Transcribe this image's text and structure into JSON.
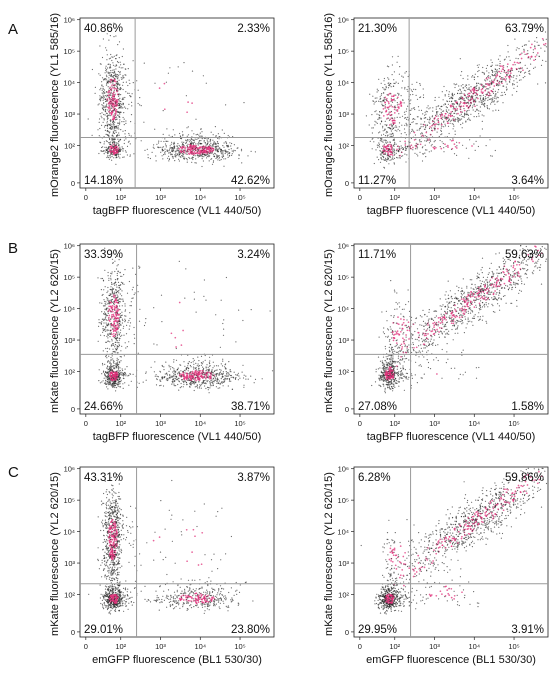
{
  "panel_letters": [
    "A",
    "B",
    "C"
  ],
  "chart_data": [
    {
      "type": "scatter",
      "panel": "A",
      "column": "left",
      "xlabel": "tagBFP fluorescence (VL1 440/50)",
      "ylabel": "mOrange2 fluorescence (YL1 585/16)",
      "xticks": [
        "0",
        "10²",
        "10³",
        "10⁴",
        "10⁵"
      ],
      "yticks": [
        "0",
        "10²",
        "10³",
        "10⁴",
        "10⁵",
        "10⁶"
      ],
      "gate": {
        "x": 230,
        "y": 180
      },
      "quadrants": {
        "top_left": "40.86%",
        "top_right": "2.33%",
        "bottom_left": "14.18%",
        "bottom_right": "42.62%"
      },
      "populations": [
        {
          "fraction": 0.4086,
          "center": [
            35,
            3000
          ],
          "spread": [
            0.35,
            0.75
          ],
          "orientation": "vertical"
        },
        {
          "fraction": 0.4262,
          "center": [
            8000,
            60
          ],
          "spread": [
            0.5,
            0.3
          ],
          "orientation": "horizontal"
        },
        {
          "fraction": 0.1418,
          "center": [
            40,
            60
          ],
          "spread": [
            0.3,
            0.3
          ],
          "orientation": "none"
        },
        {
          "fraction": 0.0233,
          "center": [
            3000,
            3000
          ],
          "spread": [
            0.9,
            0.9
          ],
          "orientation": "none"
        }
      ]
    },
    {
      "type": "scatter",
      "panel": "A",
      "column": "right",
      "xlabel": "tagBFP fluorescence (VL1 440/50)",
      "ylabel": "mOrange2 fluorescence (YL1 585/16)",
      "xticks": [
        "0",
        "10²",
        "10³",
        "10⁴",
        "10⁵"
      ],
      "yticks": [
        "0",
        "10²",
        "10³",
        "10⁴",
        "10⁵",
        "10⁶"
      ],
      "gate": {
        "x": 230,
        "y": 180
      },
      "quadrants": {
        "top_left": "21.30%",
        "top_right": "63.79%",
        "bottom_left": "11.27%",
        "bottom_right": "3.64%"
      },
      "populations": [
        {
          "fraction": 0.6379,
          "center": [
            8000,
            3000
          ],
          "spread": [
            0.55,
            0.55
          ],
          "orientation": "diagonal"
        },
        {
          "fraction": 0.213,
          "center": [
            60,
            1500
          ],
          "spread": [
            0.5,
            0.6
          ],
          "orientation": "none"
        },
        {
          "fraction": 0.1127,
          "center": [
            40,
            60
          ],
          "spread": [
            0.35,
            0.35
          ],
          "orientation": "none"
        },
        {
          "fraction": 0.0364,
          "center": [
            3000,
            80
          ],
          "spread": [
            0.6,
            0.3
          ],
          "orientation": "none"
        }
      ]
    },
    {
      "type": "scatter",
      "panel": "B",
      "column": "left",
      "xlabel": "tagBFP fluorescence (VL1 440/50)",
      "ylabel": "mKate fluorescence (YL2 620/15)",
      "xticks": [
        "0",
        "10²",
        "10³",
        "10⁴",
        "10⁵"
      ],
      "yticks": [
        "0",
        "10²",
        "10³",
        "10⁴",
        "10⁵",
        "10⁶"
      ],
      "gate": {
        "x": 250,
        "y": 350
      },
      "quadrants": {
        "top_left": "33.39%",
        "top_right": "3.24%",
        "bottom_left": "24.66%",
        "bottom_right": "38.71%"
      },
      "populations": [
        {
          "fraction": 0.3339,
          "center": [
            40,
            6000
          ],
          "spread": [
            0.35,
            0.75
          ],
          "orientation": "vertical"
        },
        {
          "fraction": 0.3871,
          "center": [
            8000,
            60
          ],
          "spread": [
            0.5,
            0.3
          ],
          "orientation": "horizontal"
        },
        {
          "fraction": 0.2466,
          "center": [
            40,
            60
          ],
          "spread": [
            0.3,
            0.3
          ],
          "orientation": "none"
        },
        {
          "fraction": 0.0324,
          "center": [
            3000,
            3000
          ],
          "spread": [
            0.9,
            0.9
          ],
          "orientation": "none"
        }
      ]
    },
    {
      "type": "scatter",
      "panel": "B",
      "column": "right",
      "xlabel": "tagBFP fluorescence (VL1 440/50)",
      "ylabel": "mKate fluorescence (YL2 620/15)",
      "xticks": [
        "0",
        "10²",
        "10³",
        "10⁴",
        "10⁵"
      ],
      "yticks": [
        "0",
        "10²",
        "10³",
        "10⁴",
        "10⁵",
        "10⁶"
      ],
      "gate": {
        "x": 250,
        "y": 350
      },
      "quadrants": {
        "top_left": "11.71%",
        "top_right": "59.63%",
        "bottom_left": "27.08%",
        "bottom_right": "1.58%"
      },
      "populations": [
        {
          "fraction": 0.5963,
          "center": [
            10000,
            20000
          ],
          "spread": [
            0.55,
            0.55
          ],
          "orientation": "diagonal"
        },
        {
          "fraction": 0.2708,
          "center": [
            50,
            70
          ],
          "spread": [
            0.3,
            0.35
          ],
          "orientation": "none"
        },
        {
          "fraction": 0.1171,
          "center": [
            150,
            2000
          ],
          "spread": [
            0.4,
            0.5
          ],
          "orientation": "none"
        },
        {
          "fraction": 0.0158,
          "center": [
            2000,
            120
          ],
          "spread": [
            0.5,
            0.3
          ],
          "orientation": "none"
        }
      ]
    },
    {
      "type": "scatter",
      "panel": "C",
      "column": "left",
      "xlabel": "emGFP fluorescence (BL1 530/30)",
      "ylabel": "mKate fluorescence (YL2 620/15)",
      "xticks": [
        "0",
        "10²",
        "10³",
        "10⁴",
        "10⁵"
      ],
      "yticks": [
        "0",
        "10²",
        "10³",
        "10⁴",
        "10⁵",
        "10⁶"
      ],
      "gate": {
        "x": 250,
        "y": 220
      },
      "quadrants": {
        "top_left": "43.31%",
        "top_right": "3.87%",
        "bottom_left": "29.01%",
        "bottom_right": "23.80%"
      },
      "populations": [
        {
          "fraction": 0.4331,
          "center": [
            35,
            6000
          ],
          "spread": [
            0.3,
            0.75
          ],
          "orientation": "vertical"
        },
        {
          "fraction": 0.2901,
          "center": [
            40,
            60
          ],
          "spread": [
            0.3,
            0.3
          ],
          "orientation": "none"
        },
        {
          "fraction": 0.238,
          "center": [
            8000,
            60
          ],
          "spread": [
            0.5,
            0.3
          ],
          "orientation": "horizontal"
        },
        {
          "fraction": 0.0387,
          "center": [
            3000,
            3000
          ],
          "spread": [
            0.9,
            0.9
          ],
          "orientation": "none"
        }
      ]
    },
    {
      "type": "scatter",
      "panel": "C",
      "column": "right",
      "xlabel": "emGFP fluorescence (BL1 530/30)",
      "ylabel": "mKate fluorescence (YL2 620/15)",
      "xticks": [
        "0",
        "10²",
        "10³",
        "10⁴",
        "10⁵"
      ],
      "yticks": [
        "0",
        "10²",
        "10³",
        "10⁴",
        "10⁵",
        "10⁶"
      ],
      "gate": {
        "x": 250,
        "y": 220
      },
      "quadrants": {
        "top_left": "6.28%",
        "top_right": "59.86%",
        "bottom_left": "29.95%",
        "bottom_right": "3.91%"
      },
      "populations": [
        {
          "fraction": 0.5986,
          "center": [
            10000,
            20000
          ],
          "spread": [
            0.55,
            0.55
          ],
          "orientation": "diagonal"
        },
        {
          "fraction": 0.2995,
          "center": [
            50,
            60
          ],
          "spread": [
            0.3,
            0.3
          ],
          "orientation": "none"
        },
        {
          "fraction": 0.0628,
          "center": [
            100,
            1500
          ],
          "spread": [
            0.4,
            0.5
          ],
          "orientation": "none"
        },
        {
          "fraction": 0.0391,
          "center": [
            2000,
            100
          ],
          "spread": [
            0.5,
            0.3
          ],
          "orientation": "none"
        }
      ]
    }
  ],
  "colors": {
    "dots_low": "#2a2a2a",
    "dots_high": "#e0307a",
    "gate_line": "#9a9a9a",
    "frame": "#222222"
  }
}
